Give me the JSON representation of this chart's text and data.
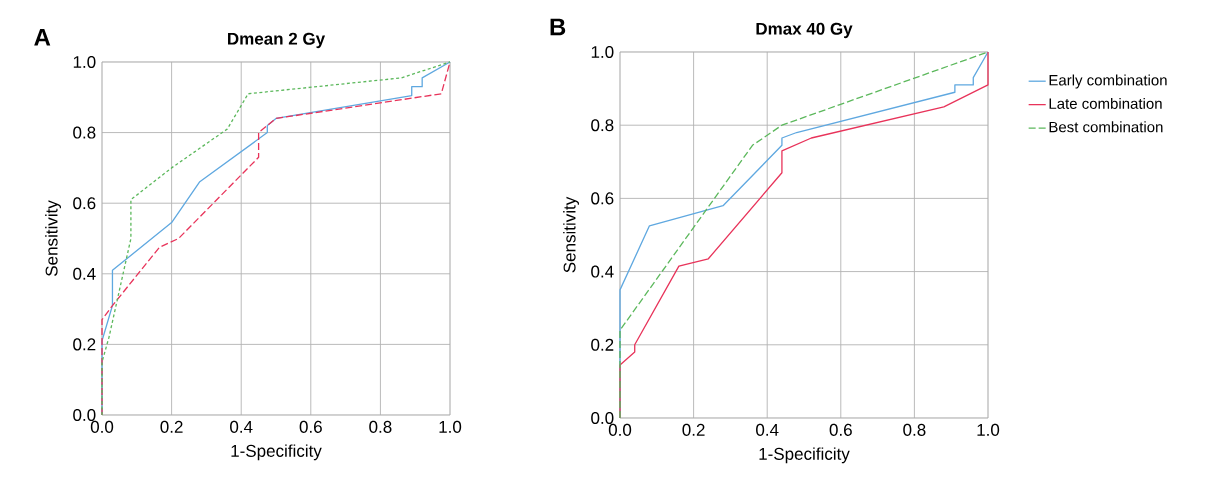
{
  "chart_data": [
    {
      "type": "line",
      "title": "Dmean 2 Gy",
      "xlabel": "1-Specificity",
      "ylabel": "Sensitivity",
      "annotations": [
        "A"
      ],
      "xlim": [
        0,
        1
      ],
      "ylim": [
        0,
        1
      ],
      "xticks": [
        {
          "value": 0,
          "label": "0.0"
        },
        {
          "value": 0.2,
          "label": "0.2"
        },
        {
          "value": 0.4,
          "label": "0.4"
        },
        {
          "value": 0.6,
          "label": "0.6"
        },
        {
          "value": 0.8,
          "label": "0.8"
        },
        {
          "value": 1,
          "label": "1.0"
        }
      ],
      "yticks": [
        {
          "value": 0,
          "label": "0.0"
        },
        {
          "value": 0.2,
          "label": "0.2"
        },
        {
          "value": 0.4,
          "label": "0.4"
        },
        {
          "value": 0.6,
          "label": "0.6"
        },
        {
          "value": 0.8,
          "label": "0.8"
        },
        {
          "value": 1,
          "label": "1.0"
        }
      ],
      "grid": true,
      "series": [
        {
          "color": "#5fa8e0",
          "line_style": "solid",
          "x": [
            0,
            0,
            0.03,
            0.03,
            0.2,
            0.28,
            0.475,
            0.475,
            0.5,
            0.89,
            0.89,
            0.92,
            0.92,
            1
          ],
          "values": [
            0,
            0.21,
            0.31,
            0.41,
            0.545,
            0.66,
            0.8,
            0.82,
            0.84,
            0.905,
            0.93,
            0.93,
            0.955,
            1
          ]
        },
        {
          "color": "#e8335a",
          "line_style": "dashed",
          "x": [
            0,
            0,
            0.03,
            0.165,
            0.22,
            0.45,
            0.45,
            0.5,
            0.975,
            1
          ],
          "values": [
            0,
            0.27,
            0.31,
            0.475,
            0.5,
            0.73,
            0.8,
            0.84,
            0.91,
            1
          ]
        },
        {
          "color": "#5cb85c",
          "line_style": "dotted",
          "x": [
            0,
            0,
            0.02,
            0.083,
            0.083,
            0.2,
            0.36,
            0.42,
            0.86,
            1
          ],
          "values": [
            0,
            0.15,
            0.22,
            0.5,
            0.61,
            0.7,
            0.81,
            0.91,
            0.955,
            1
          ]
        }
      ]
    },
    {
      "type": "line",
      "title": "Dmax 40 Gy",
      "xlabel": "1-Specificity",
      "ylabel": "Sensitivity",
      "annotations": [
        "B"
      ],
      "xlim": [
        0,
        1
      ],
      "ylim": [
        0,
        1
      ],
      "xticks": [
        {
          "value": 0,
          "label": "0.0"
        },
        {
          "value": 0.2,
          "label": "0.2"
        },
        {
          "value": 0.4,
          "label": "0.4"
        },
        {
          "value": 0.6,
          "label": "0.6"
        },
        {
          "value": 0.8,
          "label": "0.8"
        },
        {
          "value": 1,
          "label": "1.0"
        }
      ],
      "yticks": [
        {
          "value": 0,
          "label": "0.0"
        },
        {
          "value": 0.2,
          "label": "0.2"
        },
        {
          "value": 0.4,
          "label": "0.4"
        },
        {
          "value": 0.6,
          "label": "0.6"
        },
        {
          "value": 0.8,
          "label": "0.8"
        },
        {
          "value": 1,
          "label": "1.0"
        }
      ],
      "grid": true,
      "legend": "right",
      "series": [
        {
          "name": "Early combination",
          "color": "#5fa8e0",
          "line_style": "solid",
          "x": [
            0,
            0,
            0.08,
            0.28,
            0.44,
            0.44,
            0.48,
            0.91,
            0.91,
            0.96,
            0.96,
            1
          ],
          "values": [
            0,
            0.35,
            0.525,
            0.58,
            0.745,
            0.765,
            0.78,
            0.89,
            0.91,
            0.91,
            0.93,
            1
          ]
        },
        {
          "name": "Late combination",
          "color": "#e8335a",
          "line_style": "solid",
          "x": [
            0,
            0,
            0.04,
            0.04,
            0.16,
            0.24,
            0.44,
            0.44,
            0.52,
            0.88,
            1,
            1
          ],
          "values": [
            0,
            0.145,
            0.18,
            0.2,
            0.415,
            0.435,
            0.67,
            0.73,
            0.765,
            0.85,
            0.91,
            1
          ]
        },
        {
          "name": "Best combination",
          "color": "#5cb85c",
          "line_style": "dashed",
          "x": [
            0,
            0,
            0.36,
            0.44,
            1
          ],
          "values": [
            0,
            0.24,
            0.745,
            0.8,
            1
          ]
        }
      ]
    }
  ]
}
